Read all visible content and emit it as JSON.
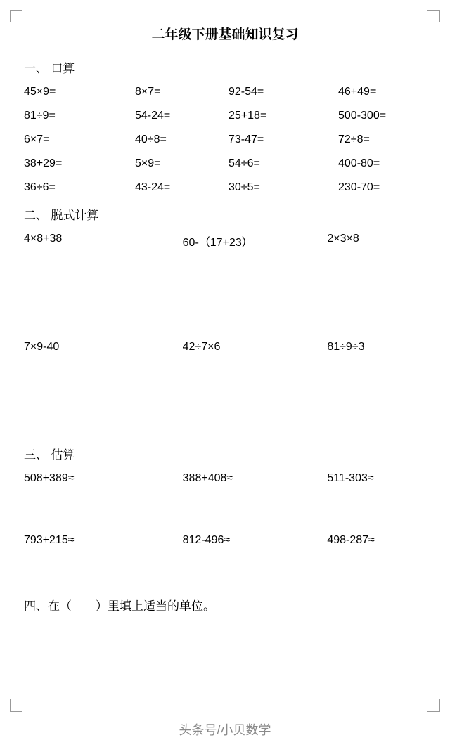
{
  "title": "二年级下册基础知识复习",
  "s1": {
    "heading": "一、 口算",
    "rows": [
      [
        "45×9=",
        "8×7=",
        "92-54=",
        "46+49="
      ],
      [
        "81÷9=",
        "54-24=",
        "25+18=",
        "500-300="
      ],
      [
        "6×7=",
        "40÷8=",
        "73-47=",
        "72÷8="
      ],
      [
        "38+29=",
        "5×9=",
        "54÷6=",
        "400-80="
      ],
      [
        "36÷6=",
        "43-24=",
        "30÷5=",
        "230-70="
      ]
    ]
  },
  "s2": {
    "heading": "二、 脱式计算",
    "rows": [
      [
        "4×8+38",
        "60-（17+23）",
        "2×3×8"
      ],
      [
        "7×9-40",
        "42÷7×6",
        "81÷9÷3"
      ]
    ]
  },
  "s3": {
    "heading": "三、 估算",
    "rows": [
      [
        "508+389≈",
        "388+408≈",
        "511-303≈"
      ],
      [
        "793+215≈",
        "812-496≈",
        "498-287≈"
      ]
    ]
  },
  "s4": {
    "heading": "四、在（　　）里填上适当的单位。"
  },
  "footer": "头条号/小贝数学"
}
